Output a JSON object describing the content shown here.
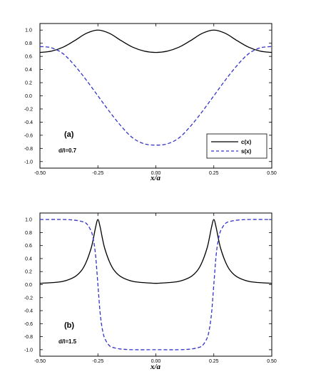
{
  "chart_data": [
    {
      "type": "line",
      "panel_label": "(a)",
      "annotation": "d/l=0.7",
      "xlabel": "x/a",
      "ylabel": "",
      "xlim": [
        -0.5,
        0.5
      ],
      "ylim": [
        -1.1,
        1.1
      ],
      "x_ticks": [
        -0.5,
        -0.25,
        0.0,
        0.25,
        0.5
      ],
      "x_tick_labels": [
        "-0.50",
        "-0.25",
        "0.00",
        "0.25",
        "0.50"
      ],
      "y_ticks": [
        -1.0,
        -0.8,
        -0.6,
        -0.4,
        -0.2,
        0.0,
        0.2,
        0.4,
        0.6,
        0.8,
        1.0
      ],
      "y_tick_labels": [
        "-1.0",
        "-0.8",
        "-0.6",
        "-0.4",
        "-0.2",
        "0.0",
        "0.2",
        "0.4",
        "0.6",
        "0.8",
        "1.0"
      ],
      "legend": {
        "position": "bottom-right",
        "entries": [
          "c(x)",
          "s(x)"
        ]
      },
      "series": [
        {
          "name": "c(x)",
          "color": "#000000",
          "style": "solid",
          "x": [
            -0.5,
            -0.45,
            -0.4,
            -0.35,
            -0.3,
            -0.25,
            -0.2,
            -0.15,
            -0.1,
            -0.05,
            0.0,
            0.05,
            0.1,
            0.15,
            0.2,
            0.25,
            0.3,
            0.35,
            0.4,
            0.45,
            0.5
          ],
          "y": [
            0.66,
            0.68,
            0.74,
            0.84,
            0.95,
            1.0,
            0.95,
            0.84,
            0.74,
            0.68,
            0.66,
            0.68,
            0.74,
            0.84,
            0.95,
            1.0,
            0.95,
            0.84,
            0.74,
            0.68,
            0.66
          ]
        },
        {
          "name": "s(x)",
          "color": "#3333cc",
          "style": "dashed",
          "x": [
            -0.5,
            -0.45,
            -0.4,
            -0.35,
            -0.3,
            -0.25,
            -0.2,
            -0.15,
            -0.1,
            -0.05,
            0.0,
            0.05,
            0.1,
            0.15,
            0.2,
            0.25,
            0.3,
            0.35,
            0.4,
            0.45,
            0.5
          ],
          "y": [
            0.75,
            0.73,
            0.64,
            0.46,
            0.24,
            0.0,
            -0.24,
            -0.46,
            -0.64,
            -0.73,
            -0.75,
            -0.73,
            -0.64,
            -0.46,
            -0.24,
            0.0,
            0.24,
            0.46,
            0.64,
            0.73,
            0.75
          ]
        }
      ]
    },
    {
      "type": "line",
      "panel_label": "(b)",
      "annotation": "d/l=1.5",
      "xlabel": "x/a",
      "ylabel": "",
      "xlim": [
        -0.5,
        0.5
      ],
      "ylim": [
        -1.1,
        1.1
      ],
      "x_ticks": [
        -0.5,
        -0.25,
        0.0,
        0.25,
        0.5
      ],
      "x_tick_labels": [
        "-0.50",
        "-0.25",
        "0.00",
        "0.25",
        "0.50"
      ],
      "y_ticks": [
        -1.0,
        -0.8,
        -0.6,
        -0.4,
        -0.2,
        0.0,
        0.2,
        0.4,
        0.6,
        0.8,
        1.0
      ],
      "y_tick_labels": [
        "-1.0",
        "-0.8",
        "-0.6",
        "-0.4",
        "-0.2",
        "0.0",
        "0.2",
        "0.4",
        "0.6",
        "0.8",
        "1.0"
      ],
      "series": [
        {
          "name": "c(x)",
          "color": "#000000",
          "style": "solid",
          "x": [
            -0.5,
            -0.45,
            -0.4,
            -0.35,
            -0.32,
            -0.3,
            -0.28,
            -0.27,
            -0.26,
            -0.25,
            -0.24,
            -0.23,
            -0.22,
            -0.2,
            -0.18,
            -0.15,
            -0.1,
            -0.05,
            0.0,
            0.05,
            0.1,
            0.15,
            0.18,
            0.2,
            0.22,
            0.23,
            0.24,
            0.25,
            0.26,
            0.27,
            0.28,
            0.3,
            0.32,
            0.35,
            0.4,
            0.45,
            0.5
          ],
          "y": [
            0.02,
            0.03,
            0.05,
            0.12,
            0.22,
            0.35,
            0.55,
            0.7,
            0.88,
            1.0,
            0.88,
            0.7,
            0.55,
            0.35,
            0.22,
            0.12,
            0.05,
            0.03,
            0.02,
            0.03,
            0.05,
            0.12,
            0.22,
            0.35,
            0.55,
            0.7,
            0.88,
            1.0,
            0.88,
            0.7,
            0.55,
            0.35,
            0.22,
            0.12,
            0.05,
            0.03,
            0.02
          ]
        },
        {
          "name": "s(x)",
          "color": "#3333cc",
          "style": "dashed",
          "x": [
            -0.5,
            -0.4,
            -0.35,
            -0.32,
            -0.3,
            -0.28,
            -0.27,
            -0.26,
            -0.25,
            -0.24,
            -0.23,
            -0.22,
            -0.2,
            -0.18,
            -0.15,
            -0.1,
            0.0,
            0.1,
            0.15,
            0.18,
            0.2,
            0.22,
            0.23,
            0.24,
            0.25,
            0.26,
            0.27,
            0.28,
            0.3,
            0.32,
            0.35,
            0.4,
            0.5
          ],
          "y": [
            1.0,
            1.0,
            0.99,
            0.97,
            0.94,
            0.83,
            0.7,
            0.45,
            0.0,
            -0.45,
            -0.7,
            -0.83,
            -0.94,
            -0.97,
            -0.99,
            -1.0,
            -1.0,
            -1.0,
            -0.99,
            -0.97,
            -0.94,
            -0.83,
            -0.7,
            -0.45,
            0.0,
            0.45,
            0.7,
            0.83,
            0.94,
            0.97,
            0.99,
            1.0,
            1.0
          ]
        }
      ]
    }
  ]
}
